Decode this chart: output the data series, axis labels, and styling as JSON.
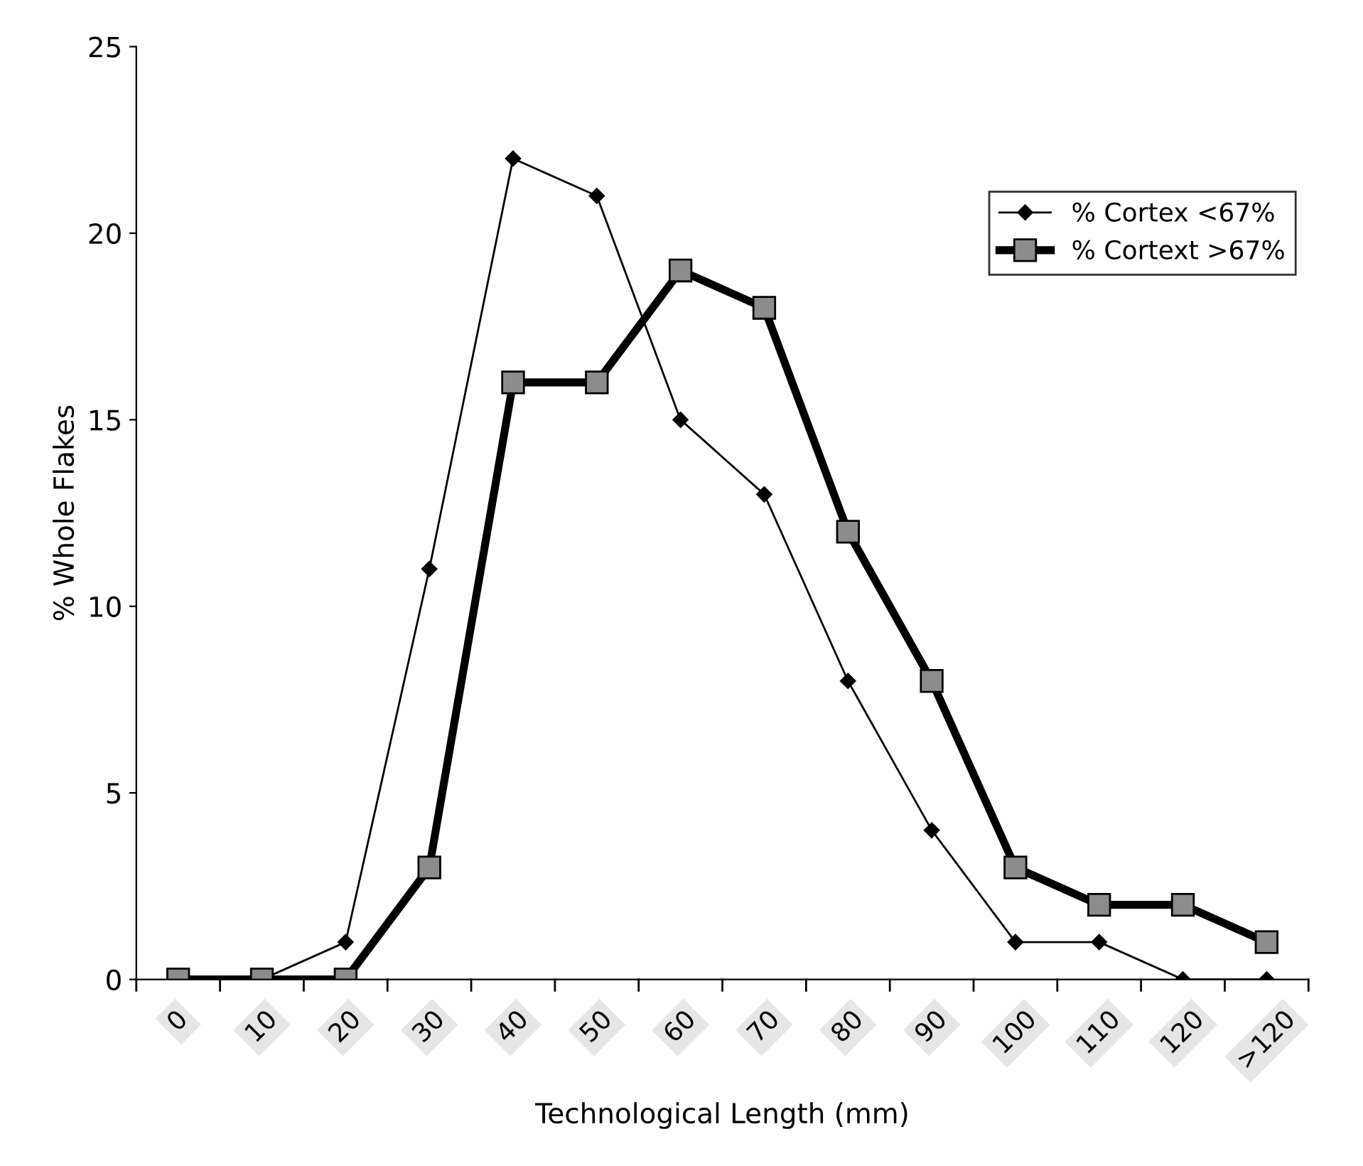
{
  "chart_data": {
    "type": "line",
    "xlabel": "Technological Length (mm)",
    "ylabel": "% Whole Flakes",
    "categories": [
      "0",
      "10",
      "20",
      "30",
      "40",
      "50",
      "60",
      "70",
      "80",
      "90",
      "100",
      "110",
      "120",
      ">120"
    ],
    "series": [
      {
        "name": "% Cortex <67%",
        "color": "#000000",
        "marker": "diamond",
        "values": [
          0,
          0,
          1,
          11,
          22,
          21,
          15,
          13,
          8,
          4,
          1,
          1,
          0,
          0
        ]
      },
      {
        "name": "% Cortext >67%",
        "color": "#000000",
        "marker": "square",
        "values": [
          0,
          0,
          0,
          3,
          16,
          16,
          19,
          18,
          12,
          8,
          3,
          2,
          2,
          1
        ]
      }
    ],
    "ylim": [
      0,
      25
    ],
    "yticks": [
      0,
      5,
      10,
      15,
      20,
      25
    ],
    "grid": false,
    "legend": "right",
    "line_style": "solid"
  }
}
